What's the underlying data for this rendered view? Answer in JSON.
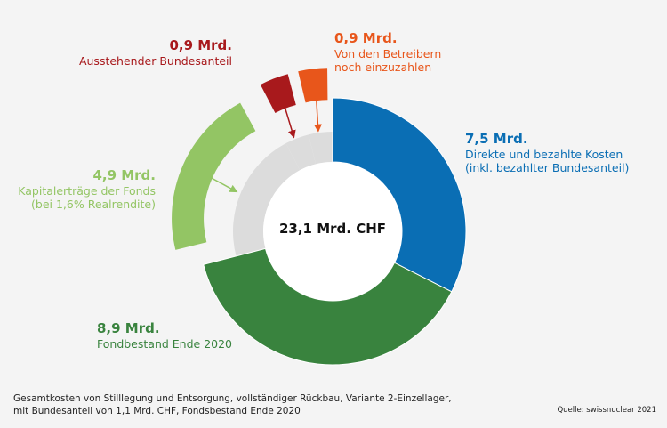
{
  "chart_data": {
    "type": "pie",
    "subtype": "donut",
    "total_unit": "Mrd. CHF",
    "center_label": "23,1 Mrd. CHF",
    "slices": [
      {
        "name": "Direkte und bezahlte Kosten",
        "value": 7.5,
        "value_label": "7,5 Mrd.",
        "desc": [
          "Direkte und bezahlte Kosten",
          "(inkl. bezahlter Bundesanteil)"
        ],
        "color": "#0a6eb4",
        "exploded": false
      },
      {
        "name": "Fondbestand Ende 2020",
        "value": 8.9,
        "value_label": "8,9 Mrd.",
        "desc": [
          "Fondbestand Ende 2020"
        ],
        "color": "#39833e",
        "exploded": false
      },
      {
        "name": "Kapitalerträge der Fonds",
        "value": 4.9,
        "value_label": "4,9 Mrd.",
        "desc": [
          "Kapitalerträge der Fonds",
          "(bei 1,6% Realrendite)"
        ],
        "color": "#93c564",
        "exploded": true
      },
      {
        "name": "Ausstehender Bundesanteil",
        "value": 0.9,
        "value_label": "0,9 Mrd.",
        "desc": [
          "Ausstehender Bundesanteil"
        ],
        "color": "#a8191c",
        "exploded": true
      },
      {
        "name": "Von den Betreibern noch einzuzahlen",
        "value": 0.9,
        "value_label": "0,9 Mrd.",
        "desc": [
          "Von den Betreibern",
          "noch einzuzahlen"
        ],
        "color": "#e8561b",
        "exploded": true
      }
    ],
    "placeholder_color": "#dcdcdc"
  },
  "footnote": [
    "Gesamtkosten von Stilllegung und Entsorgung, vollständiger Rückbau, Variante 2-Einzellager,",
    "mit Bundesanteil von 1,1 Mrd. CHF, Fondsbestand Ende 2020"
  ],
  "source": "Quelle: swissnuclear 2021"
}
